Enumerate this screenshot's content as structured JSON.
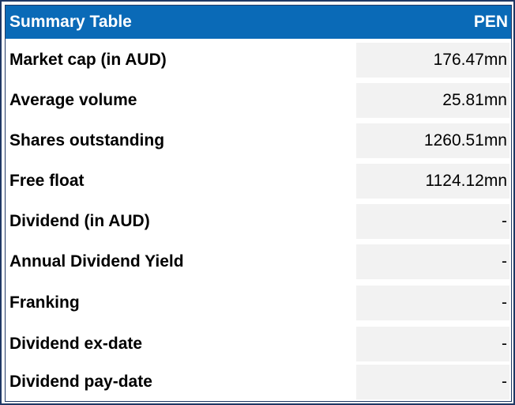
{
  "table": {
    "header_label": "Summary Table",
    "header_ticker": "PEN",
    "rows": [
      {
        "label": "Market cap (in AUD)",
        "value": "176.47mn"
      },
      {
        "label": "Average volume",
        "value": "25.81mn"
      },
      {
        "label": "Shares outstanding",
        "value": "1260.51mn"
      },
      {
        "label": "Free float",
        "value": "1124.12mn"
      },
      {
        "label": "Dividend (in AUD)",
        "value": "-"
      },
      {
        "label": "Annual Dividend Yield",
        "value": "-"
      },
      {
        "label": "Franking",
        "value": "-"
      },
      {
        "label": "Dividend ex-date",
        "value": "-"
      },
      {
        "label": "Dividend pay-date",
        "value": "-"
      }
    ]
  },
  "colors": {
    "header_bg": "#0a6ab7",
    "header_text": "#ffffff",
    "value_cell_bg": "#f2f2f2",
    "border": "#1f3864"
  }
}
